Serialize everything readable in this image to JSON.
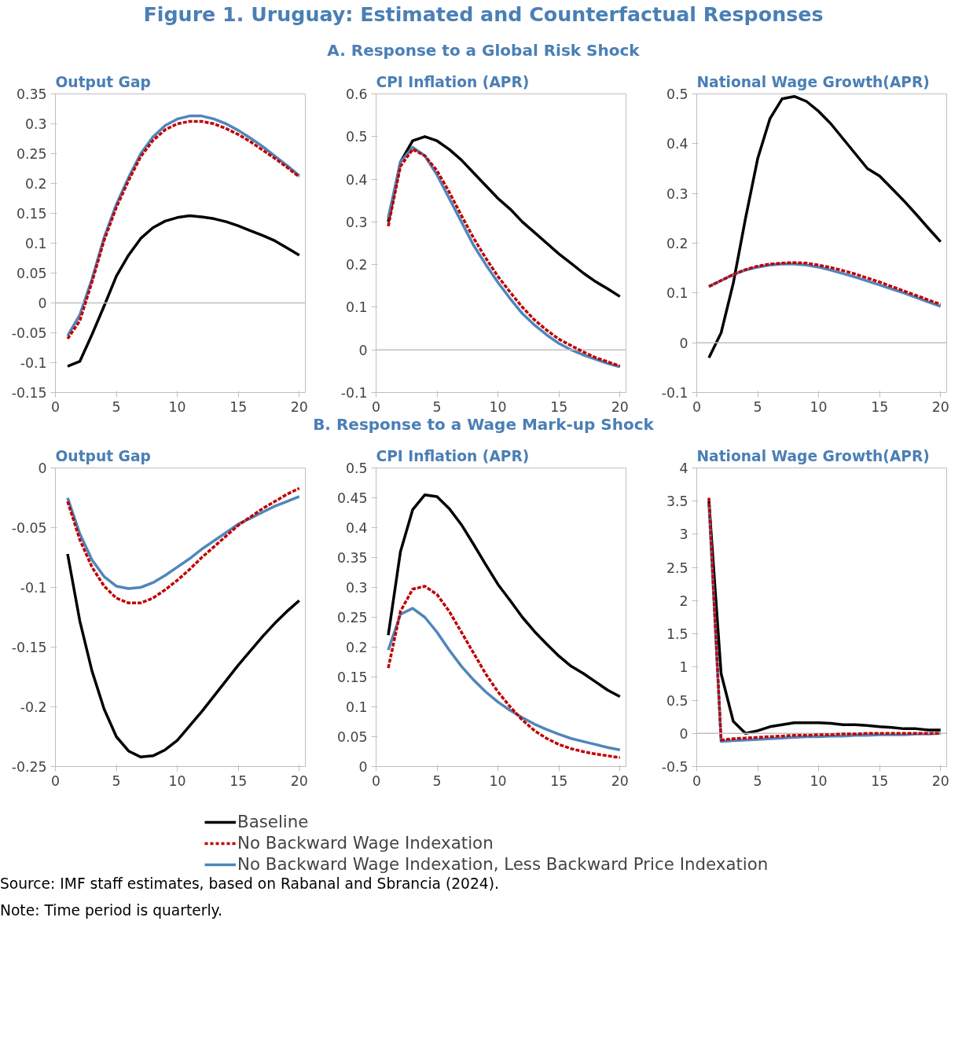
{
  "chart_data": [
    {
      "type": "line",
      "title": "Output Gap",
      "annotations": [
        "Figure 1. Uruguay: Estimated and Counterfactual Responses",
        "A. Response to a Global Risk Shock"
      ],
      "x": [
        1,
        2,
        3,
        4,
        5,
        6,
        7,
        8,
        9,
        10,
        11,
        12,
        13,
        14,
        15,
        16,
        17,
        18,
        19,
        20
      ],
      "xlim": [
        0,
        20.5
      ],
      "xticks": [
        0,
        5,
        10,
        15,
        20
      ],
      "ylim": [
        -0.15,
        0.35
      ],
      "yticks": [
        -0.15,
        -0.1,
        -0.05,
        0,
        0.05,
        0.1,
        0.15,
        0.2,
        0.25,
        0.3,
        0.35
      ],
      "grid": false,
      "marker": "none",
      "ref_lines": [
        {
          "axis": "y",
          "value": 0
        }
      ],
      "series": [
        {
          "color": "#000000",
          "line_style": "solid",
          "values": [
            -0.106,
            -0.098,
            -0.053,
            -0.005,
            0.045,
            0.08,
            0.108,
            0.126,
            0.137,
            0.143,
            0.146,
            0.144,
            0.141,
            0.136,
            0.129,
            0.121,
            0.113,
            0.104,
            0.092,
            0.08
          ]
        },
        {
          "color": "#c00000",
          "line_style": "dashed",
          "values": [
            -0.06,
            -0.03,
            0.035,
            0.105,
            0.16,
            0.205,
            0.245,
            0.272,
            0.29,
            0.3,
            0.304,
            0.304,
            0.3,
            0.292,
            0.282,
            0.27,
            0.256,
            0.242,
            0.227,
            0.211
          ]
        },
        {
          "color": "#4f86bc",
          "line_style": "solid",
          "values": [
            -0.055,
            -0.02,
            0.04,
            0.11,
            0.165,
            0.21,
            0.25,
            0.278,
            0.297,
            0.308,
            0.313,
            0.313,
            0.308,
            0.3,
            0.289,
            0.276,
            0.262,
            0.246,
            0.23,
            0.213
          ]
        }
      ]
    },
    {
      "type": "line",
      "title": "CPI Inflation (APR)",
      "x": [
        1,
        2,
        3,
        4,
        5,
        6,
        7,
        8,
        9,
        10,
        11,
        12,
        13,
        14,
        15,
        16,
        17,
        18,
        19,
        20
      ],
      "xlim": [
        0,
        20.5
      ],
      "xticks": [
        0,
        5,
        10,
        15,
        20
      ],
      "ylim": [
        -0.1,
        0.6
      ],
      "yticks": [
        -0.1,
        0,
        0.1,
        0.2,
        0.3,
        0.4,
        0.5,
        0.6
      ],
      "grid": false,
      "marker": "none",
      "ref_lines": [
        {
          "axis": "y",
          "value": 0
        }
      ],
      "series": [
        {
          "color": "#000000",
          "line_style": "solid",
          "values": [
            0.3,
            0.44,
            0.49,
            0.5,
            0.49,
            0.47,
            0.445,
            0.415,
            0.385,
            0.355,
            0.33,
            0.3,
            0.275,
            0.25,
            0.225,
            0.203,
            0.18,
            0.16,
            0.143,
            0.125
          ]
        },
        {
          "color": "#c00000",
          "line_style": "dashed",
          "values": [
            0.29,
            0.43,
            0.47,
            0.455,
            0.42,
            0.37,
            0.315,
            0.262,
            0.215,
            0.172,
            0.135,
            0.1,
            0.07,
            0.046,
            0.025,
            0.01,
            -0.005,
            -0.018,
            -0.028,
            -0.038
          ]
        },
        {
          "color": "#4f86bc",
          "line_style": "solid",
          "values": [
            0.31,
            0.44,
            0.475,
            0.455,
            0.41,
            0.355,
            0.3,
            0.245,
            0.2,
            0.158,
            0.12,
            0.085,
            0.058,
            0.035,
            0.015,
            0.0,
            -0.012,
            -0.022,
            -0.032,
            -0.04
          ]
        }
      ]
    },
    {
      "type": "line",
      "title": "National Wage Growth(APR)",
      "x": [
        1,
        2,
        3,
        4,
        5,
        6,
        7,
        8,
        9,
        10,
        11,
        12,
        13,
        14,
        15,
        16,
        17,
        18,
        19,
        20
      ],
      "xlim": [
        0,
        20.5
      ],
      "xticks": [
        0,
        5,
        10,
        15,
        20
      ],
      "ylim": [
        -0.1,
        0.5
      ],
      "yticks": [
        -0.1,
        0,
        0.1,
        0.2,
        0.3,
        0.4,
        0.5
      ],
      "grid": false,
      "marker": "none",
      "ref_lines": [
        {
          "axis": "y",
          "value": 0
        }
      ],
      "series": [
        {
          "color": "#000000",
          "line_style": "solid",
          "values": [
            -0.03,
            0.02,
            0.12,
            0.25,
            0.37,
            0.45,
            0.49,
            0.495,
            0.485,
            0.465,
            0.44,
            0.41,
            0.38,
            0.35,
            0.335,
            0.31,
            0.285,
            0.258,
            0.23,
            0.203
          ]
        },
        {
          "color": "#c00000",
          "line_style": "dashed",
          "values": [
            0.113,
            0.125,
            0.137,
            0.147,
            0.154,
            0.158,
            0.16,
            0.161,
            0.16,
            0.156,
            0.151,
            0.145,
            0.138,
            0.13,
            0.122,
            0.113,
            0.104,
            0.095,
            0.086,
            0.077
          ]
        },
        {
          "color": "#4f86bc",
          "line_style": "solid",
          "values": [
            0.113,
            0.125,
            0.137,
            0.146,
            0.152,
            0.156,
            0.158,
            0.158,
            0.156,
            0.152,
            0.146,
            0.139,
            0.132,
            0.124,
            0.116,
            0.108,
            0.1,
            0.091,
            0.082,
            0.073
          ]
        }
      ]
    },
    {
      "type": "line",
      "title": "Output Gap",
      "annotations": [
        "B. Response to a Wage Mark-up Shock"
      ],
      "x": [
        1,
        2,
        3,
        4,
        5,
        6,
        7,
        8,
        9,
        10,
        11,
        12,
        13,
        14,
        15,
        16,
        17,
        18,
        19,
        20
      ],
      "xlim": [
        0,
        20.5
      ],
      "xticks": [
        0,
        5,
        10,
        15,
        20
      ],
      "ylim": [
        -0.25,
        0
      ],
      "yticks": [
        -0.25,
        -0.2,
        -0.15,
        -0.1,
        -0.05,
        0
      ],
      "grid": false,
      "marker": "none",
      "series": [
        {
          "color": "#000000",
          "line_style": "solid",
          "values": [
            -0.072,
            -0.128,
            -0.17,
            -0.202,
            -0.225,
            -0.237,
            -0.242,
            -0.241,
            -0.236,
            -0.228,
            -0.216,
            -0.204,
            -0.191,
            -0.178,
            -0.165,
            -0.153,
            -0.141,
            -0.13,
            -0.12,
            -0.111
          ]
        },
        {
          "color": "#c00000",
          "line_style": "dashed",
          "values": [
            -0.028,
            -0.06,
            -0.083,
            -0.099,
            -0.109,
            -0.113,
            -0.113,
            -0.109,
            -0.102,
            -0.094,
            -0.085,
            -0.075,
            -0.066,
            -0.057,
            -0.048,
            -0.041,
            -0.034,
            -0.028,
            -0.022,
            -0.017
          ]
        },
        {
          "color": "#4f86bc",
          "line_style": "solid",
          "values": [
            -0.025,
            -0.055,
            -0.077,
            -0.091,
            -0.099,
            -0.101,
            -0.1,
            -0.096,
            -0.09,
            -0.083,
            -0.076,
            -0.068,
            -0.061,
            -0.054,
            -0.047,
            -0.042,
            -0.037,
            -0.032,
            -0.028,
            -0.024
          ]
        }
      ]
    },
    {
      "type": "line",
      "title": "CPI Inflation (APR)",
      "x": [
        1,
        2,
        3,
        4,
        5,
        6,
        7,
        8,
        9,
        10,
        11,
        12,
        13,
        14,
        15,
        16,
        17,
        18,
        19,
        20
      ],
      "xlim": [
        0,
        20.5
      ],
      "xticks": [
        0,
        5,
        10,
        15,
        20
      ],
      "ylim": [
        0,
        0.5
      ],
      "yticks": [
        0,
        0.05,
        0.1,
        0.15,
        0.2,
        0.25,
        0.3,
        0.35,
        0.4,
        0.45,
        0.5
      ],
      "grid": false,
      "marker": "none",
      "series": [
        {
          "color": "#000000",
          "line_style": "solid",
          "values": [
            0.22,
            0.36,
            0.43,
            0.455,
            0.452,
            0.432,
            0.405,
            0.372,
            0.338,
            0.305,
            0.278,
            0.25,
            0.226,
            0.205,
            0.185,
            0.168,
            0.156,
            0.142,
            0.128,
            0.117
          ]
        },
        {
          "color": "#c00000",
          "line_style": "dashed",
          "values": [
            0.165,
            0.26,
            0.297,
            0.302,
            0.288,
            0.26,
            0.225,
            0.19,
            0.155,
            0.125,
            0.1,
            0.078,
            0.06,
            0.047,
            0.037,
            0.03,
            0.025,
            0.021,
            0.018,
            0.015
          ]
        },
        {
          "color": "#4f86bc",
          "line_style": "solid",
          "values": [
            0.195,
            0.255,
            0.265,
            0.25,
            0.225,
            0.195,
            0.168,
            0.145,
            0.125,
            0.108,
            0.094,
            0.082,
            0.071,
            0.062,
            0.054,
            0.047,
            0.042,
            0.037,
            0.032,
            0.028
          ]
        }
      ]
    },
    {
      "type": "line",
      "title": "National Wage Growth(APR)",
      "annotations": [
        "Source: IMF staff estimates, based on Rabanal and Sbrancia (2024).",
        "Note: Time period is quarterly."
      ],
      "x": [
        1,
        2,
        3,
        4,
        5,
        6,
        7,
        8,
        9,
        10,
        11,
        12,
        13,
        14,
        15,
        16,
        17,
        18,
        19,
        20
      ],
      "xlim": [
        0,
        20.5
      ],
      "xticks": [
        0,
        5,
        10,
        15,
        20
      ],
      "ylim": [
        -0.5,
        4
      ],
      "yticks": [
        -0.5,
        0,
        0.5,
        1,
        1.5,
        2,
        2.5,
        3,
        3.5,
        4
      ],
      "grid": false,
      "marker": "none",
      "legend": "bottom",
      "ref_lines": [
        {
          "axis": "y",
          "value": 0
        }
      ],
      "series": [
        {
          "name": "Baseline",
          "color": "#000000",
          "line_style": "solid",
          "values": [
            3.5,
            0.9,
            0.18,
            0.0,
            0.04,
            0.1,
            0.13,
            0.16,
            0.16,
            0.16,
            0.15,
            0.13,
            0.13,
            0.12,
            0.1,
            0.09,
            0.07,
            0.07,
            0.05,
            0.05
          ]
        },
        {
          "name": "No Backward Wage Indexation",
          "color": "#c00000",
          "line_style": "dashed",
          "values": [
            3.55,
            -0.1,
            -0.08,
            -0.07,
            -0.06,
            -0.05,
            -0.04,
            -0.03,
            -0.03,
            -0.02,
            -0.02,
            -0.01,
            -0.01,
            0,
            0,
            0,
            0,
            0,
            0,
            0
          ]
        },
        {
          "name": "No Backward Wage Indexation, Less Backward Price Indexation",
          "color": "#4f86bc",
          "line_style": "solid",
          "values": [
            3.45,
            -0.12,
            -0.11,
            -0.1,
            -0.09,
            -0.08,
            -0.07,
            -0.06,
            -0.05,
            -0.05,
            -0.04,
            -0.04,
            -0.03,
            -0.03,
            -0.02,
            -0.02,
            -0.02,
            -0.01,
            -0.01,
            0.0
          ]
        }
      ]
    }
  ]
}
